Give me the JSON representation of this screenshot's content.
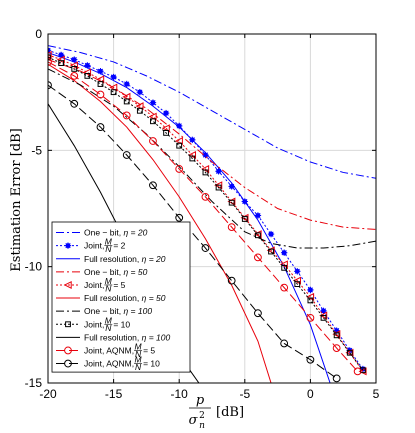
{
  "chart_data": {
    "type": "line",
    "xlabel": {
      "main": "p",
      "denominator_base": "σ",
      "denominator_sup": "2",
      "denominator_sub": "n",
      "unit": "[dB]"
    },
    "ylabel": "Estimation Error [dB]",
    "xlim": [
      -20,
      5
    ],
    "ylim": [
      -15,
      0
    ],
    "x_ticks": [
      -20,
      -15,
      -10,
      -5,
      0,
      5
    ],
    "y_ticks": [
      0,
      -5,
      -10,
      -15
    ],
    "x_tick_labels": [
      "-20",
      "-15",
      "-10",
      "-5",
      "0",
      "5"
    ],
    "y_tick_labels": [
      "0",
      "-5",
      "-10",
      "-15"
    ],
    "grid": true,
    "legend_position": "bottom-left",
    "series": [
      {
        "name": "One − bit, η = 20",
        "label_main": "One − bit, ",
        "label_param": "η = 20",
        "color": "#0000ff",
        "dash": "8,3,2,3",
        "marker": "none",
        "x": [
          -20,
          -17.5,
          -15,
          -12.5,
          -10,
          -7.5,
          -5,
          -2.5,
          0,
          2.5,
          5
        ],
        "y": [
          -0.5,
          -0.8,
          -1.2,
          -1.8,
          -2.5,
          -3.3,
          -4.1,
          -4.9,
          -5.5,
          -5.95,
          -6.2
        ]
      },
      {
        "name": "Joint, M/N = 2",
        "label_main": "Joint, ",
        "label_frac_num": "M",
        "label_frac_den": "N",
        "label_after": " = 2",
        "color": "#0000ff",
        "dash": "2,2",
        "marker": "asterisk",
        "x": [
          -20,
          -19,
          -18,
          -17,
          -16,
          -15,
          -14,
          -13,
          -12,
          -11,
          -10,
          -9,
          -8,
          -7,
          -6,
          -5,
          -4,
          -3,
          -2,
          -1,
          0,
          1,
          2,
          3,
          4
        ],
        "y": [
          -0.7,
          -0.9,
          -1.1,
          -1.35,
          -1.6,
          -1.85,
          -2.15,
          -2.5,
          -2.95,
          -3.4,
          -3.95,
          -4.55,
          -5.2,
          -5.9,
          -6.55,
          -7.2,
          -7.8,
          -8.6,
          -9.4,
          -10.2,
          -11.0,
          -11.9,
          -12.75,
          -13.6,
          -14.4
        ]
      },
      {
        "name": "Full resolution, η = 20",
        "label_main": "Full resolution, ",
        "label_param": "η = 20",
        "color": "#0000ff",
        "dash": "none",
        "marker": "none",
        "x": [
          -20,
          -18,
          -16,
          -14,
          -12,
          -10,
          -8,
          -6,
          -4,
          -2,
          0,
          1.5
        ],
        "y": [
          -0.8,
          -1.2,
          -1.7,
          -2.3,
          -3.1,
          -4.0,
          -5.1,
          -6.4,
          -8.0,
          -10.0,
          -12.5,
          -15.0
        ]
      },
      {
        "name": "One − bit, η = 50",
        "label_main": "One − bit, ",
        "label_param": "η = 50",
        "color": "#e8000b",
        "dash": "8,3,2,3",
        "marker": "none",
        "x": [
          -20,
          -17.5,
          -15,
          -12.5,
          -10,
          -7.5,
          -5,
          -2.5,
          0,
          2.5,
          5
        ],
        "y": [
          -1.1,
          -1.6,
          -2.3,
          -3.2,
          -4.3,
          -5.5,
          -6.6,
          -7.5,
          -8.0,
          -8.3,
          -8.4
        ]
      },
      {
        "name": "Joint, M/N = 5",
        "label_main": "Joint, ",
        "label_frac_num": "M",
        "label_frac_den": "N",
        "label_after": " = 5",
        "color": "#e8000b",
        "dash": "2,2",
        "marker": "triangle-left",
        "x": [
          -20,
          -19,
          -18,
          -17,
          -16,
          -15,
          -14,
          -13,
          -12,
          -11,
          -10,
          -9,
          -8,
          -7,
          -6,
          -5,
          -4,
          -3,
          -2,
          -1,
          0,
          1,
          2,
          3,
          4
        ],
        "y": [
          -0.9,
          -1.1,
          -1.35,
          -1.65,
          -1.95,
          -2.3,
          -2.7,
          -3.1,
          -3.55,
          -4.05,
          -4.6,
          -5.2,
          -5.8,
          -6.5,
          -7.2,
          -7.9,
          -8.6,
          -9.3,
          -9.9,
          -10.6,
          -11.3,
          -12.1,
          -12.9,
          -13.7,
          -14.5
        ]
      },
      {
        "name": "Full resolution, η = 50",
        "label_main": "Full resolution, ",
        "label_param": "η = 50",
        "color": "#e8000b",
        "dash": "none",
        "marker": "none",
        "x": [
          -20,
          -18,
          -16,
          -14,
          -12,
          -10,
          -8,
          -6,
          -4,
          -3
        ],
        "y": [
          -1.3,
          -2.0,
          -2.9,
          -4.0,
          -5.4,
          -7.0,
          -8.8,
          -10.8,
          -13.2,
          -15.0
        ]
      },
      {
        "name": "One − bit, η = 100",
        "label_main": "One − bit, ",
        "label_param": "η = 100",
        "color": "#000000",
        "dash": "8,3,2,3",
        "marker": "none",
        "x": [
          -20,
          -17.5,
          -15,
          -12.5,
          -10,
          -7.5,
          -5,
          -3,
          -1,
          1,
          3,
          5
        ],
        "y": [
          -1.5,
          -2.2,
          -3.1,
          -4.3,
          -5.7,
          -7.2,
          -8.5,
          -9.0,
          -9.2,
          -9.2,
          -9.1,
          -8.9
        ]
      },
      {
        "name": "Joint, M/N = 10",
        "label_main": "Joint, ",
        "label_frac_num": "M",
        "label_frac_den": "N",
        "label_after": " = 10",
        "color": "#000000",
        "dash": "2,2",
        "marker": "square",
        "x": [
          -20,
          -19,
          -18,
          -17,
          -16,
          -15,
          -14,
          -13,
          -12,
          -11,
          -10,
          -9,
          -8,
          -7,
          -6,
          -5,
          -4,
          -3,
          -2,
          -1,
          0,
          1,
          2,
          3,
          4
        ],
        "y": [
          -1.0,
          -1.25,
          -1.5,
          -1.8,
          -2.15,
          -2.5,
          -2.9,
          -3.3,
          -3.75,
          -4.25,
          -4.8,
          -5.35,
          -5.95,
          -6.6,
          -7.25,
          -7.95,
          -8.65,
          -9.35,
          -10.05,
          -10.75,
          -11.45,
          -12.2,
          -12.95,
          -13.7,
          -14.45
        ]
      },
      {
        "name": "Full resolution, η = 100",
        "label_main": "Full resolution, ",
        "label_param": "η = 100",
        "color": "#000000",
        "dash": "none",
        "marker": "none",
        "x": [
          -20,
          -18,
          -16,
          -14,
          -12,
          -10,
          -8.5
        ],
        "y": [
          -3.0,
          -4.8,
          -6.8,
          -9.0,
          -11.4,
          -13.8,
          -15.0
        ]
      },
      {
        "name": "Joint, AQNM, M/N = 5",
        "label_main": "Joint,  AQNM, ",
        "label_frac_num": "M",
        "label_frac_den": "N",
        "label_after": " = 5",
        "color": "#e8000b",
        "dash": "9,4",
        "marker": "circle",
        "x": [
          -20,
          -18,
          -16,
          -14,
          -12,
          -10,
          -8,
          -6,
          -4,
          -2,
          0,
          2,
          3.6
        ],
        "y": [
          -1.2,
          -1.8,
          -2.6,
          -3.5,
          -4.6,
          -5.8,
          -7.0,
          -8.3,
          -9.6,
          -10.9,
          -12.2,
          -13.5,
          -14.5
        ]
      },
      {
        "name": "Joint, AQNM, M/N = 10",
        "label_main": "Joint,  AQNM, ",
        "label_frac_num": "M",
        "label_frac_den": "N",
        "label_after": " = 10",
        "color": "#000000",
        "dash": "9,4",
        "marker": "circle",
        "x": [
          -20,
          -18,
          -16,
          -14,
          -12,
          -10,
          -8,
          -6,
          -4,
          -2,
          0,
          2
        ],
        "y": [
          -2.2,
          -3.0,
          -4.0,
          -5.2,
          -6.5,
          -7.9,
          -9.2,
          -10.6,
          -12.0,
          -13.3,
          -14.0,
          -14.8
        ]
      }
    ]
  }
}
